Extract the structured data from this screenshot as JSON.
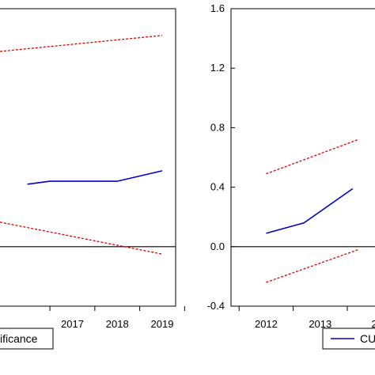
{
  "chart_data": [
    {
      "type": "line",
      "panel": "left",
      "x": [
        2017,
        2018,
        2019
      ],
      "x_tick_labels": [
        "2017",
        "2018",
        "2019"
      ],
      "x_range": [
        2015.3,
        2019.3
      ],
      "y_range": [
        -0.4,
        1.6
      ],
      "zero_line": true,
      "grid": false,
      "series": [
        {
          "role": "statistic",
          "color": "#0000cc",
          "style": "solid",
          "points": [
            [
              2016,
              0.42
            ],
            [
              2016.5,
              0.44
            ],
            [
              2017,
              0.44
            ],
            [
              2018,
              0.44
            ],
            [
              2019,
              0.51
            ]
          ]
        },
        {
          "role": "upper-bound",
          "color": "#dd0000",
          "style": "dashed",
          "points": [
            [
              2015.3,
              1.31
            ],
            [
              2019,
              1.42
            ]
          ]
        },
        {
          "role": "lower-bound",
          "color": "#dd0000",
          "style": "dashed",
          "points": [
            [
              2015.3,
              0.17
            ],
            [
              2019,
              -0.05
            ]
          ]
        }
      ],
      "legend": {
        "text": "ificance",
        "placement": "bottom-left"
      }
    },
    {
      "type": "line",
      "panel": "right",
      "x": [
        2012,
        2013
      ],
      "x_tick_labels": [
        "2012",
        "2013",
        "2"
      ],
      "x_range": [
        2011.35,
        2014.1
      ],
      "y_range": [
        -0.4,
        1.6
      ],
      "y_ticks": [
        -0.4,
        0.0,
        0.4,
        0.8,
        1.2,
        1.6
      ],
      "y_tick_labels": [
        "-0.4",
        "0.0",
        "0.4",
        "0.8",
        "1.2",
        "1.6"
      ],
      "zero_line": true,
      "grid": false,
      "series": [
        {
          "role": "statistic",
          "color": "#0000cc",
          "style": "solid",
          "points": [
            [
              2012,
              0.09
            ],
            [
              2012.7,
              0.16
            ],
            [
              2013.6,
              0.39
            ]
          ]
        },
        {
          "role": "upper-bound",
          "color": "#dd0000",
          "style": "dashed",
          "points": [
            [
              2012,
              0.49
            ],
            [
              2013.7,
              0.72
            ]
          ]
        },
        {
          "role": "lower-bound",
          "color": "#dd0000",
          "style": "dashed",
          "points": [
            [
              2012,
              -0.24
            ],
            [
              2013.7,
              -0.02
            ]
          ]
        }
      ],
      "legend": {
        "text": "CU",
        "placement": "bottom-right"
      }
    }
  ]
}
